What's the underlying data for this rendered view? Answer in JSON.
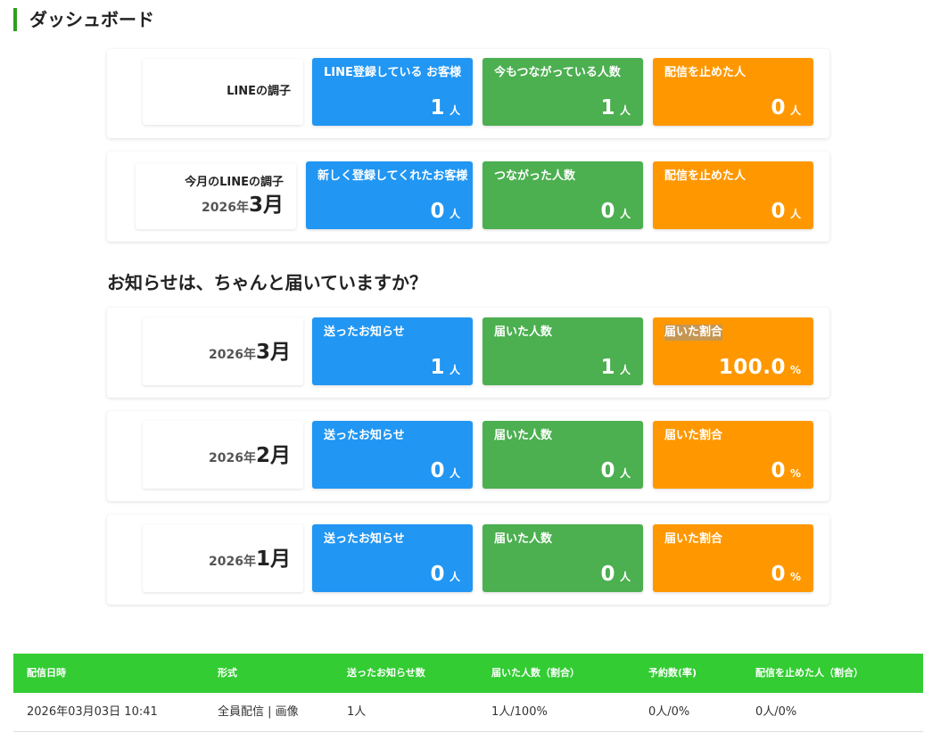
{
  "page": {
    "title": "ダッシュボード"
  },
  "line_status": {
    "label": "LINEの調子",
    "registered": {
      "title": "LINE登録している お客様",
      "value": "1",
      "unit": "人"
    },
    "connected": {
      "title": "今もつながっている人数",
      "value": "1",
      "unit": "人"
    },
    "blocked": {
      "title": "配信を止めた人",
      "value": "0",
      "unit": "人"
    }
  },
  "monthly_status": {
    "label": "今月のLINEの調子",
    "year": "2026年",
    "month": "3月",
    "new_registered": {
      "title": "新しく登録してくれたお客様",
      "value": "0",
      "unit": "人"
    },
    "connected": {
      "title": "つながった人数",
      "value": "0",
      "unit": "人"
    },
    "blocked": {
      "title": "配信を止めた人",
      "value": "0",
      "unit": "人"
    }
  },
  "delivery_section": {
    "heading": "お知らせは、ちゃんと届いていますか？",
    "months": [
      {
        "year": "2026年",
        "month": "3月",
        "sent": {
          "title": "送ったお知らせ",
          "value": "1",
          "unit": "人"
        },
        "delivered": {
          "title": "届いた人数",
          "value": "1",
          "unit": "人"
        },
        "rate": {
          "title": "届いた割合",
          "value": "100.0",
          "unit": "%"
        }
      },
      {
        "year": "2026年",
        "month": "2月",
        "sent": {
          "title": "送ったお知らせ",
          "value": "0",
          "unit": "人"
        },
        "delivered": {
          "title": "届いた人数",
          "value": "0",
          "unit": "人"
        },
        "rate": {
          "title": "届いた割合",
          "value": "0",
          "unit": "%"
        }
      },
      {
        "year": "2026年",
        "month": "1月",
        "sent": {
          "title": "送ったお知らせ",
          "value": "0",
          "unit": "人"
        },
        "delivered": {
          "title": "届いた人数",
          "value": "0",
          "unit": "人"
        },
        "rate": {
          "title": "届いた割合",
          "value": "0",
          "unit": "%"
        }
      }
    ]
  },
  "table": {
    "headers": [
      "配信日時",
      "形式",
      "送ったお知らせ数",
      "届いた人数（割合）",
      "予約数(率)",
      "配信を止めた人（割合）"
    ],
    "rows": [
      [
        "2026年03月03日 10:41",
        "全員配信 | 画像",
        "1人",
        "1人/100%",
        "0人/0%",
        "0人/0%"
      ]
    ]
  },
  "colors": {
    "blue": "#2196f3",
    "green": "#4caf50",
    "orange": "#ff9800",
    "table_header": "#33cc33",
    "title_accent": "#2e9e1e"
  }
}
